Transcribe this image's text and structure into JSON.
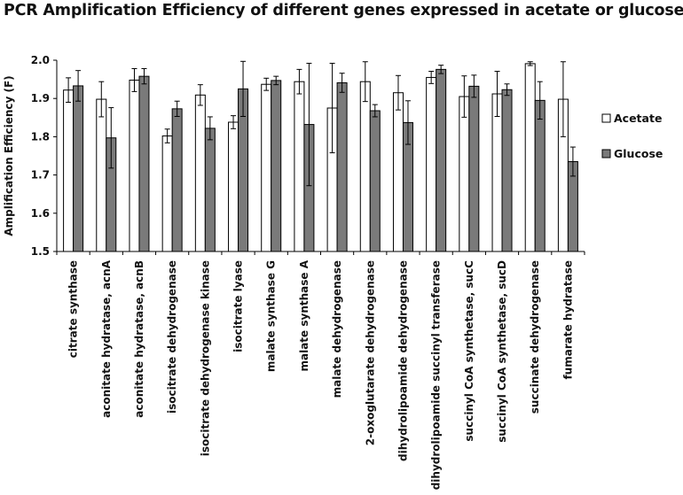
{
  "chart_data": {
    "type": "bar",
    "title": "PCR Amplification Efficiency of different genes expressed in acetate or glucose",
    "ylabel": "Amplification Efficiency (F)",
    "xlabel": "",
    "ylim": [
      1.5,
      2.0
    ],
    "yticks": [
      "1.5",
      "1.6",
      "1.7",
      "1.8",
      "1.9",
      "2.0"
    ],
    "grid": false,
    "legend_position": "right",
    "categories": [
      "citrate synthase",
      "aconitate hydratase, acnA",
      "aconitate hydratase, acnB",
      "isocitrate dehydrogenase",
      "isocitrate dehydrogenase kinase",
      "isocitrate lyase",
      "malate synthase G",
      "malate synthase A",
      "malate dehydrogenase",
      "2-oxoglutarate dehydrogenase",
      "dihydrolipoamide dehydrogenase",
      "dihydrolipoamide succinyl transferase",
      "succinyl CoA synthetase, sucC",
      "succinyl CoA synthetase, sucD",
      "succinate dehydrogenase",
      "fumarate hydratase"
    ],
    "series": [
      {
        "name": "Acetate",
        "color": "#ffffff",
        "values": [
          1.922,
          1.898,
          1.948,
          1.802,
          1.909,
          1.838,
          1.937,
          1.944,
          1.875,
          1.944,
          1.915,
          1.955,
          1.905,
          1.912,
          1.991,
          1.898
        ],
        "errors": [
          0.032,
          0.046,
          0.03,
          0.018,
          0.027,
          0.017,
          0.016,
          0.032,
          0.117,
          0.052,
          0.045,
          0.016,
          0.054,
          0.059,
          0.005,
          0.098
        ]
      },
      {
        "name": "Glucose",
        "color": "#7a7a7a",
        "values": [
          1.933,
          1.797,
          1.958,
          1.873,
          1.822,
          1.925,
          1.947,
          1.832,
          1.941,
          1.868,
          1.837,
          1.976,
          1.932,
          1.923,
          1.895,
          1.735
        ],
        "errors": [
          0.04,
          0.079,
          0.02,
          0.02,
          0.03,
          0.072,
          0.011,
          0.16,
          0.025,
          0.016,
          0.057,
          0.011,
          0.029,
          0.015,
          0.049,
          0.038
        ]
      }
    ]
  }
}
